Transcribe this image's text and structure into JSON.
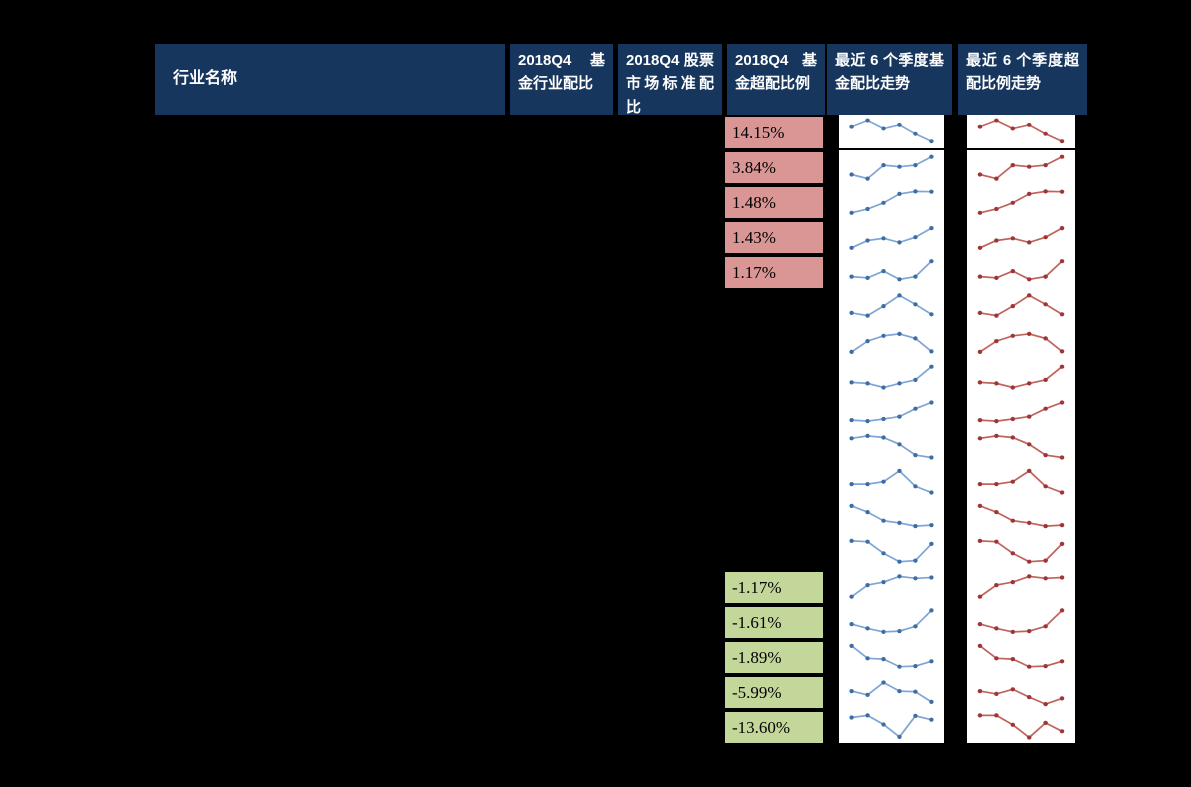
{
  "colors": {
    "background": "#000000",
    "header_bg": "#17365d",
    "header_text": "#ffffff",
    "overweight_positive_fill": "#d99694",
    "overweight_negative_fill": "#c4d79b",
    "chart_bg": "#ffffff",
    "alloc_line": "#7fa5d5",
    "alloc_marker": "#3c6ea5",
    "over_line": "#c0635f",
    "over_marker": "#9e3634"
  },
  "chart_data": {
    "type": "table",
    "columns": [
      {
        "key": "industry",
        "label": "行业名称"
      },
      {
        "key": "fund_alloc",
        "label": "2018Q4 基金行业配比"
      },
      {
        "key": "market_alloc",
        "label": "2018Q4 股票市场标准配比"
      },
      {
        "key": "overweight",
        "label": "2018Q4 基金超配比例"
      },
      {
        "key": "alloc_trend",
        "label": "最近 6 个季度基金配比走势"
      },
      {
        "key": "over_trend",
        "label": "最近 6 个季度超配比例走势"
      }
    ],
    "sparkline_points_per_row": 6,
    "rows": [
      {
        "overweight": "14.15%",
        "fill": "pink",
        "trend": [
          0.69,
          0.93,
          0.62,
          0.76,
          0.41,
          0.12
        ]
      },
      {
        "overweight": "3.84%",
        "fill": "pink",
        "trend": [
          0.24,
          0.09,
          0.59,
          0.53,
          0.59,
          0.9
        ]
      },
      {
        "overweight": "1.48%",
        "fill": "pink",
        "trend": [
          0.12,
          0.26,
          0.49,
          0.82,
          0.91,
          0.9
        ]
      },
      {
        "overweight": "1.43%",
        "fill": "pink",
        "trend": [
          0.12,
          0.39,
          0.47,
          0.32,
          0.51,
          0.85
        ]
      },
      {
        "overweight": "1.17%",
        "fill": "pink",
        "trend": [
          0.35,
          0.3,
          0.55,
          0.25,
          0.35,
          0.92
        ]
      },
      {
        "overweight": "",
        "fill": "none",
        "trend": [
          0.3,
          0.2,
          0.55,
          0.95,
          0.62,
          0.25
        ]
      },
      {
        "overweight": "",
        "fill": "none",
        "trend": [
          0.15,
          0.55,
          0.75,
          0.82,
          0.65,
          0.17
        ]
      },
      {
        "overweight": "",
        "fill": "none",
        "trend": [
          0.32,
          0.28,
          0.13,
          0.28,
          0.41,
          0.9
        ]
      },
      {
        "overweight": "",
        "fill": "none",
        "trend": [
          0.22,
          0.18,
          0.26,
          0.35,
          0.64,
          0.87
        ]
      },
      {
        "overweight": "",
        "fill": "none",
        "trend": [
          0.84,
          0.93,
          0.87,
          0.62,
          0.22,
          0.13
        ]
      },
      {
        "overweight": "",
        "fill": "none",
        "trend": [
          0.44,
          0.44,
          0.53,
          0.93,
          0.36,
          0.13
        ]
      },
      {
        "overweight": "",
        "fill": "none",
        "trend": [
          0.93,
          0.7,
          0.38,
          0.3,
          0.18,
          0.22
        ]
      },
      {
        "overweight": "",
        "fill": "none",
        "trend": [
          0.93,
          0.9,
          0.47,
          0.16,
          0.2,
          0.82
        ]
      },
      {
        "overweight": "-1.17%",
        "fill": "green",
        "trend": [
          0.16,
          0.59,
          0.7,
          0.91,
          0.84,
          0.87
        ]
      },
      {
        "overweight": "-1.61%",
        "fill": "green",
        "trend": [
          0.44,
          0.28,
          0.15,
          0.18,
          0.36,
          0.95
        ]
      },
      {
        "overweight": "-1.89%",
        "fill": "green",
        "trend": [
          0.93,
          0.47,
          0.44,
          0.16,
          0.18,
          0.36
        ]
      },
      {
        "overweight": "-5.99%",
        "fill": "green",
        "trend": [
          0.55,
          0.41,
          0.87,
          0.55,
          0.53,
          0.15
        ],
        "over_trend": [
          0.55,
          0.45,
          0.62,
          0.33,
          0.07,
          0.28
        ]
      },
      {
        "overweight": "-13.60%",
        "fill": "green",
        "trend": [
          0.87,
          0.95,
          0.61,
          0.15,
          0.93,
          0.79
        ],
        "over_trend": [
          0.95,
          0.95,
          0.6,
          0.13,
          0.67,
          0.36
        ]
      }
    ]
  }
}
